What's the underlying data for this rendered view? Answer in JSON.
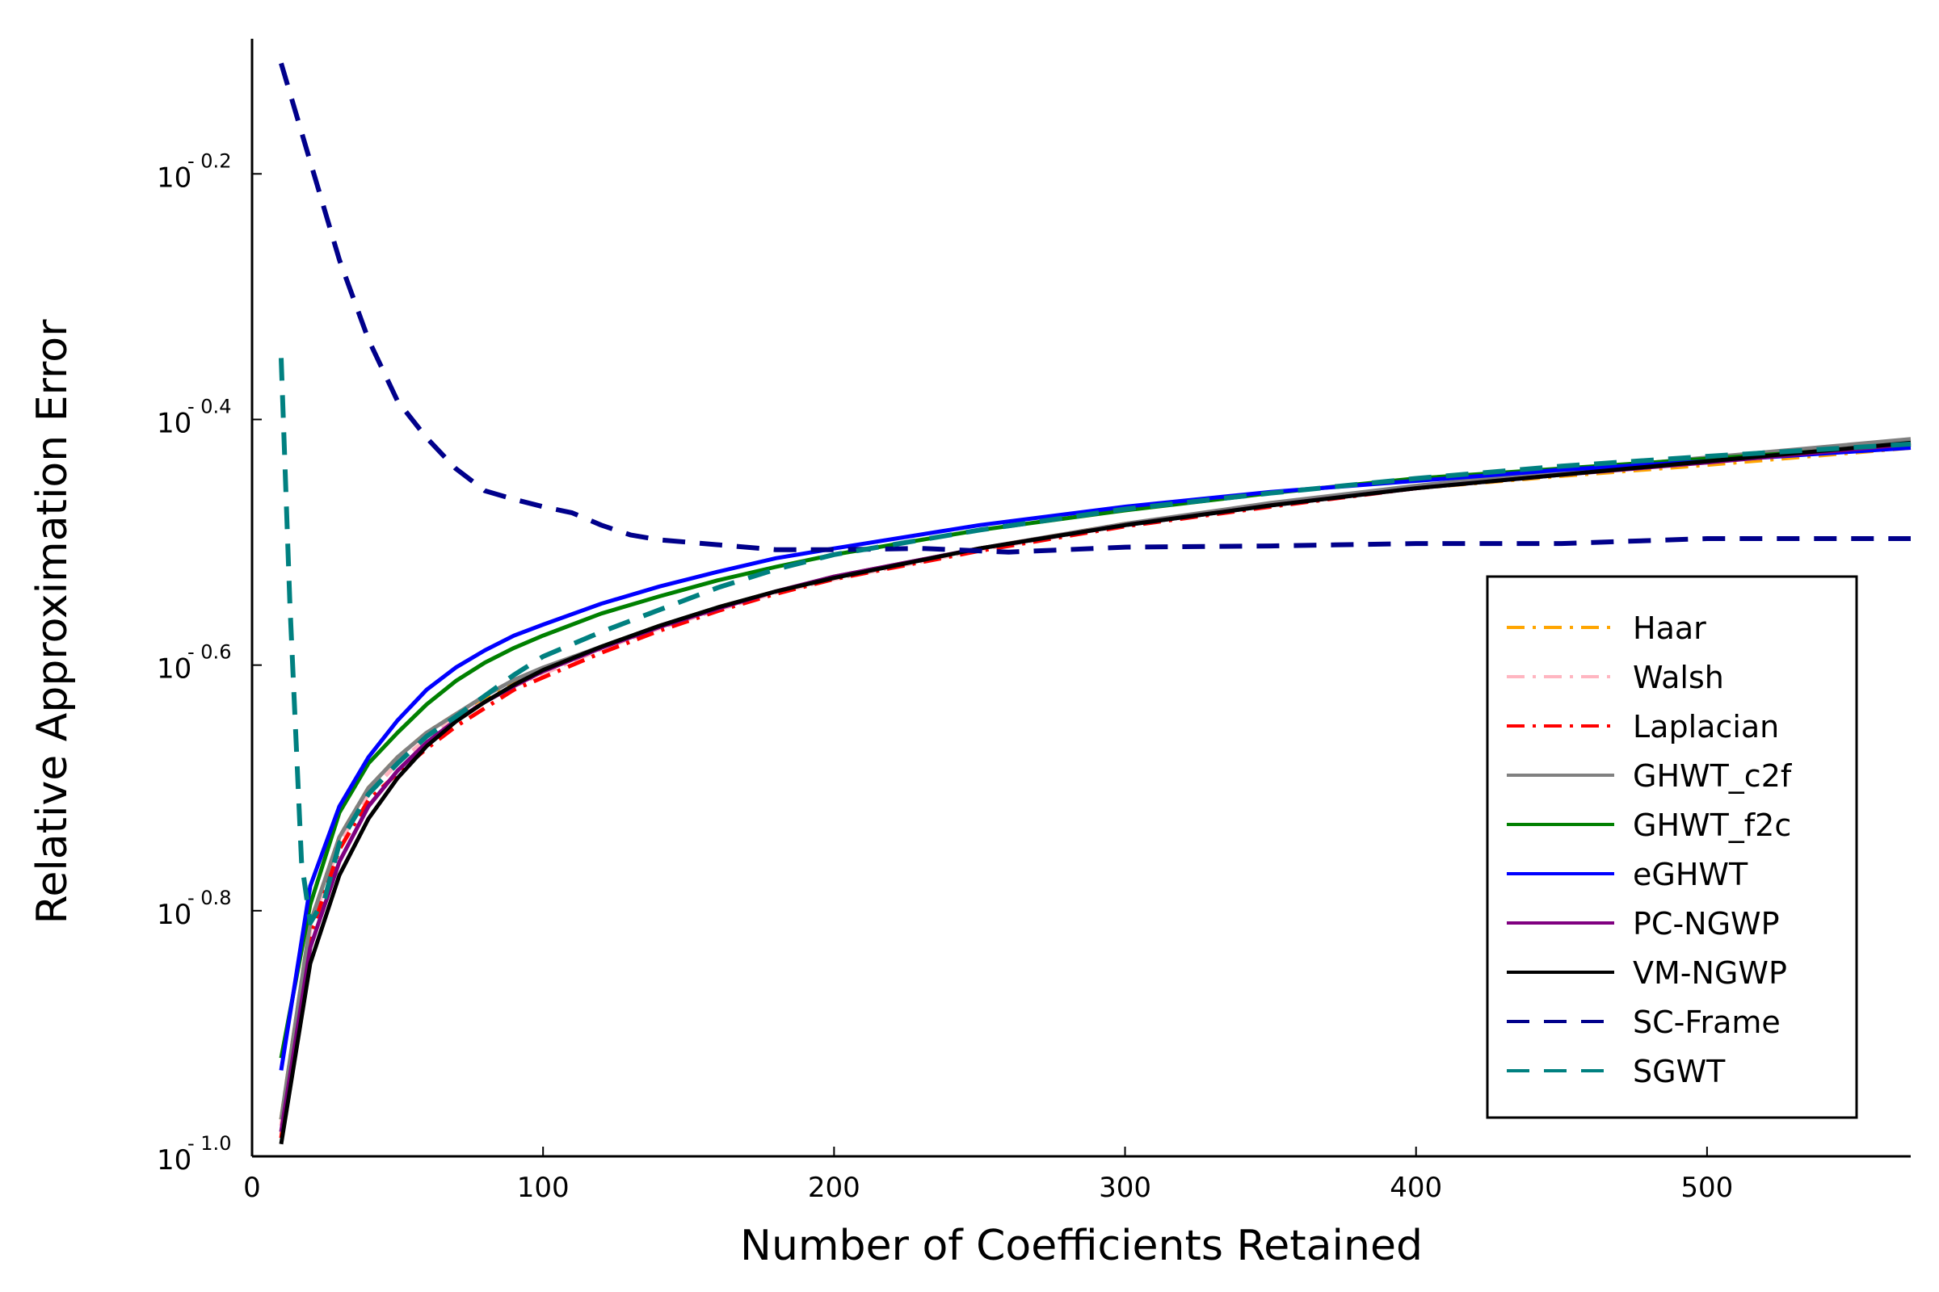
{
  "chart_data": {
    "type": "line",
    "xlabel": "Number of Coefficients Retained",
    "ylabel": "Relative Approximation Error",
    "xlim": [
      0,
      570
    ],
    "ylim_log10": [
      -1.0,
      -0.09
    ],
    "yscale": "log10",
    "grid": false,
    "legend_position": "right",
    "x_ticks": [
      {
        "value": 0,
        "label": "0"
      },
      {
        "value": 100,
        "label": "100"
      },
      {
        "value": 200,
        "label": "200"
      },
      {
        "value": 300,
        "label": "300"
      },
      {
        "value": 400,
        "label": "400"
      },
      {
        "value": 500,
        "label": "500"
      }
    ],
    "y_ticks": [
      {
        "value": -1.0,
        "base": "10",
        "exp": "- 1.0"
      },
      {
        "value": -0.8,
        "base": "10",
        "exp": "- 0.8"
      },
      {
        "value": -0.6,
        "base": "10",
        "exp": "- 0.6"
      },
      {
        "value": -0.4,
        "base": "10",
        "exp": "- 0.4"
      },
      {
        "value": -0.2,
        "base": "10",
        "exp": "- 0.2"
      }
    ],
    "series": [
      {
        "name": "Haar",
        "color": "#FFA500",
        "dash": "dashdot",
        "x": [
          10,
          20,
          30,
          40,
          50,
          60,
          70,
          80,
          90,
          100,
          120,
          140,
          160,
          180,
          200,
          250,
          300,
          350,
          400,
          450,
          500,
          570
        ],
        "y": [
          -0.97,
          -0.81,
          -0.74,
          -0.7,
          -0.675,
          -0.655,
          -0.64,
          -0.628,
          -0.615,
          -0.605,
          -0.585,
          -0.568,
          -0.553,
          -0.54,
          -0.528,
          -0.505,
          -0.485,
          -0.47,
          -0.456,
          -0.446,
          -0.437,
          -0.423
        ]
      },
      {
        "name": "Walsh",
        "color": "#FFB6C1",
        "dash": "dashdot",
        "x": [
          10,
          20,
          30,
          40,
          50,
          60,
          70,
          80,
          90,
          100,
          120,
          140,
          160,
          180,
          200,
          250,
          300,
          350,
          400,
          450,
          500,
          570
        ],
        "y": [
          -0.975,
          -0.815,
          -0.745,
          -0.705,
          -0.68,
          -0.66,
          -0.643,
          -0.63,
          -0.617,
          -0.607,
          -0.587,
          -0.57,
          -0.555,
          -0.541,
          -0.53,
          -0.506,
          -0.486,
          -0.47,
          -0.456,
          -0.445,
          -0.435,
          -0.42
        ]
      },
      {
        "name": "Laplacian",
        "color": "#FF0000",
        "dash": "dashdot",
        "x": [
          10,
          20,
          30,
          40,
          50,
          60,
          70,
          80,
          90,
          100,
          120,
          140,
          160,
          180,
          200,
          250,
          300,
          350,
          400,
          450,
          500,
          570
        ],
        "y": [
          -0.985,
          -0.82,
          -0.75,
          -0.71,
          -0.688,
          -0.668,
          -0.65,
          -0.635,
          -0.62,
          -0.61,
          -0.59,
          -0.572,
          -0.556,
          -0.542,
          -0.53,
          -0.507,
          -0.487,
          -0.471,
          -0.456,
          -0.444,
          -0.433,
          -0.418
        ]
      },
      {
        "name": "GHWT_c2f",
        "color": "#808080",
        "dash": "solid",
        "x": [
          10,
          20,
          30,
          40,
          50,
          60,
          70,
          80,
          90,
          100,
          120,
          140,
          160,
          180,
          200,
          250,
          300,
          350,
          400,
          450,
          500,
          570
        ],
        "y": [
          -0.97,
          -0.81,
          -0.74,
          -0.7,
          -0.675,
          -0.655,
          -0.64,
          -0.625,
          -0.612,
          -0.602,
          -0.585,
          -0.568,
          -0.553,
          -0.54,
          -0.528,
          -0.505,
          -0.485,
          -0.468,
          -0.454,
          -0.442,
          -0.431,
          -0.416
        ]
      },
      {
        "name": "GHWT_f2c",
        "color": "#008000",
        "dash": "solid",
        "x": [
          10,
          20,
          30,
          40,
          50,
          60,
          70,
          80,
          90,
          100,
          120,
          140,
          160,
          180,
          200,
          250,
          300,
          350,
          400,
          450,
          500,
          570
        ],
        "y": [
          -0.92,
          -0.795,
          -0.72,
          -0.68,
          -0.655,
          -0.632,
          -0.613,
          -0.598,
          -0.586,
          -0.576,
          -0.558,
          -0.544,
          -0.531,
          -0.52,
          -0.51,
          -0.49,
          -0.474,
          -0.46,
          -0.448,
          -0.44,
          -0.432,
          -0.421
        ]
      },
      {
        "name": "eGHWT",
        "color": "#0000FF",
        "dash": "solid",
        "x": [
          10,
          20,
          30,
          40,
          50,
          60,
          70,
          80,
          90,
          100,
          120,
          140,
          160,
          180,
          200,
          250,
          300,
          350,
          400,
          450,
          500,
          570
        ],
        "y": [
          -0.93,
          -0.78,
          -0.715,
          -0.675,
          -0.645,
          -0.62,
          -0.602,
          -0.588,
          -0.576,
          -0.567,
          -0.55,
          -0.536,
          -0.524,
          -0.513,
          -0.505,
          -0.486,
          -0.471,
          -0.459,
          -0.45,
          -0.441,
          -0.434,
          -0.423
        ]
      },
      {
        "name": "PC-NGWP",
        "color": "#800080",
        "dash": "solid",
        "x": [
          10,
          20,
          30,
          40,
          50,
          60,
          70,
          80,
          90,
          100,
          120,
          140,
          160,
          180,
          200,
          250,
          300,
          350,
          400,
          450,
          500,
          570
        ],
        "y": [
          -0.98,
          -0.83,
          -0.76,
          -0.715,
          -0.686,
          -0.663,
          -0.645,
          -0.63,
          -0.617,
          -0.605,
          -0.586,
          -0.569,
          -0.554,
          -0.54,
          -0.528,
          -0.505,
          -0.486,
          -0.47,
          -0.456,
          -0.445,
          -0.435,
          -0.42
        ]
      },
      {
        "name": "VM-NGWP",
        "color": "#000000",
        "dash": "solid",
        "x": [
          10,
          20,
          30,
          40,
          50,
          60,
          70,
          80,
          90,
          100,
          120,
          140,
          160,
          180,
          200,
          250,
          300,
          350,
          400,
          450,
          500,
          570
        ],
        "y": [
          -0.99,
          -0.843,
          -0.771,
          -0.725,
          -0.692,
          -0.666,
          -0.646,
          -0.63,
          -0.616,
          -0.604,
          -0.585,
          -0.568,
          -0.553,
          -0.54,
          -0.529,
          -0.505,
          -0.486,
          -0.47,
          -0.456,
          -0.445,
          -0.434,
          -0.419
        ]
      },
      {
        "name": "SC-Frame",
        "color": "#00008B",
        "dash": "dashed",
        "x": [
          10,
          20,
          30,
          40,
          50,
          60,
          70,
          80,
          90,
          100,
          110,
          120,
          130,
          140,
          160,
          180,
          200,
          230,
          260,
          300,
          350,
          400,
          450,
          500,
          570
        ],
        "y": [
          -0.11,
          -0.19,
          -0.27,
          -0.335,
          -0.385,
          -0.415,
          -0.44,
          -0.458,
          -0.465,
          -0.471,
          -0.476,
          -0.486,
          -0.494,
          -0.498,
          -0.502,
          -0.506,
          -0.506,
          -0.505,
          -0.508,
          -0.504,
          -0.503,
          -0.501,
          -0.501,
          -0.497,
          -0.497
        ]
      },
      {
        "name": "SGWT",
        "color": "#008080",
        "dash": "dashed",
        "x": [
          10,
          13,
          17,
          20,
          25,
          30,
          40,
          50,
          60,
          70,
          80,
          90,
          100,
          120,
          140,
          160,
          180,
          200,
          250,
          300,
          350,
          400,
          450,
          500,
          570
        ],
        "y": [
          -0.35,
          -0.55,
          -0.76,
          -0.81,
          -0.79,
          -0.745,
          -0.705,
          -0.68,
          -0.658,
          -0.642,
          -0.625,
          -0.608,
          -0.593,
          -0.573,
          -0.555,
          -0.537,
          -0.522,
          -0.51,
          -0.49,
          -0.473,
          -0.46,
          -0.448,
          -0.438,
          -0.43,
          -0.42
        ]
      }
    ]
  }
}
